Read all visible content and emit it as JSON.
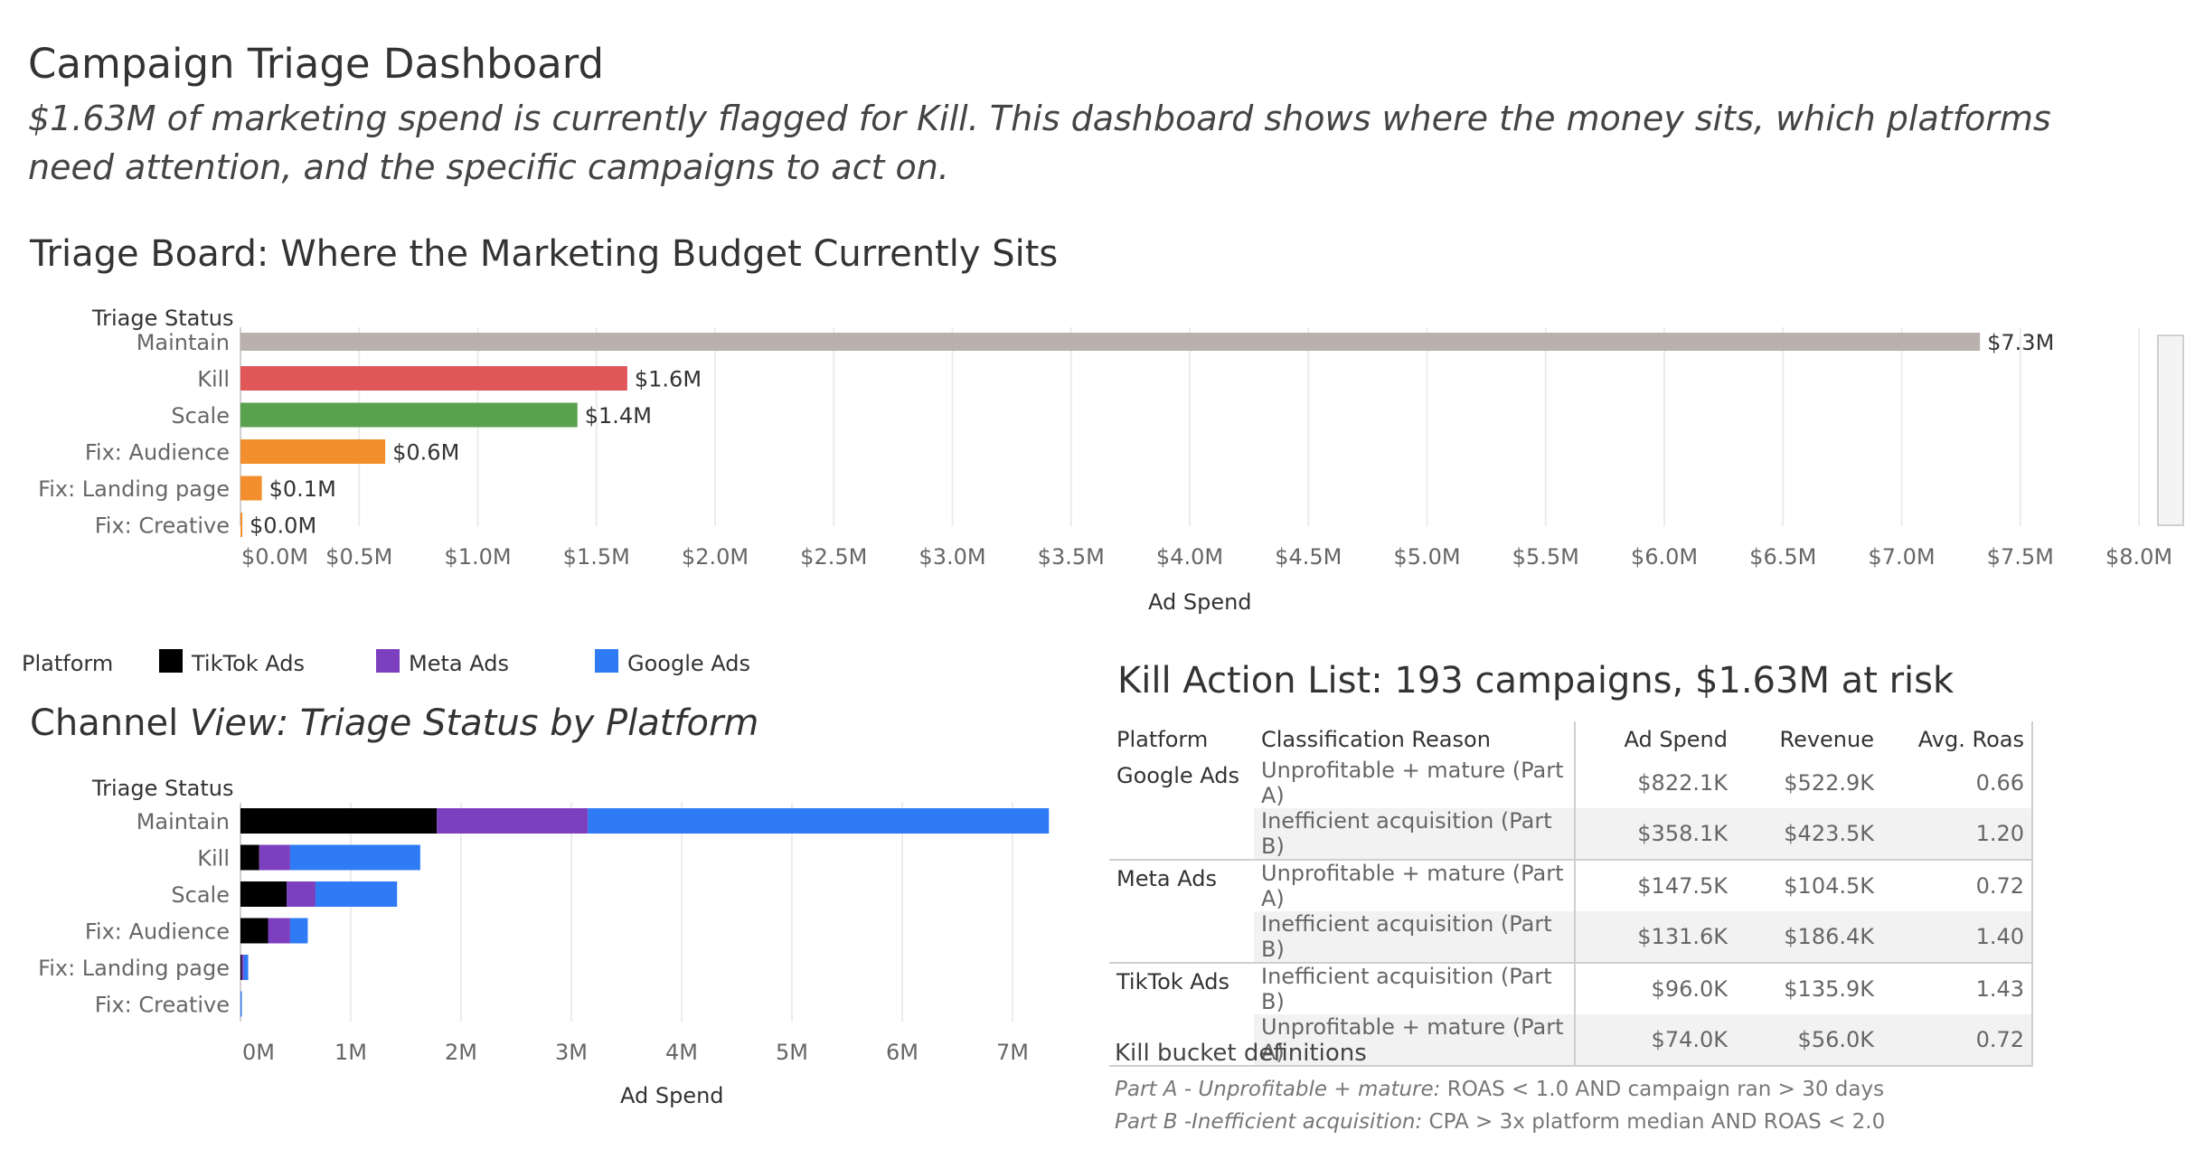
{
  "header": {
    "title": "Campaign Triage Dashboard",
    "subtitle": "$1.63M of marketing spend is currently flagged for Kill. This dashboard shows where the money sits, which platforms need attention, and the specific campaigns to act on."
  },
  "colors": {
    "maintain": "#bab0ac",
    "kill": "#e15759",
    "scale": "#59a14f",
    "fix_audience": "#f28e2b",
    "fix_landing": "#f28e2b",
    "fix_creative": "#f28e2b",
    "tiktok": "#000000",
    "meta": "#7b3fbf",
    "google": "#2f7bf5",
    "gridline": "#ececec"
  },
  "triage_board": {
    "title": "Triage Board: Where the Marketing Budget Currently Sits",
    "header_label": "Triage Status",
    "axis_title": "Ad Spend"
  },
  "channel_view": {
    "title_plain": "Channel",
    "title_italic": "View: Triage Status by Platform",
    "header_label": "Triage Status",
    "axis_title": "Ad Spend",
    "legend_title": "Platform",
    "legend": [
      {
        "name": "TikTok Ads",
        "color": "#000000"
      },
      {
        "name": "Meta Ads",
        "color": "#7b3fbf"
      },
      {
        "name": "Google Ads",
        "color": "#2f7bf5"
      }
    ]
  },
  "chart_data": [
    {
      "type": "bar",
      "orientation": "horizontal",
      "title": "Triage Board: Where the Marketing Budget Currently Sits",
      "xlabel": "Ad Spend",
      "ylabel": "Triage Status",
      "categories": [
        "Maintain",
        "Kill",
        "Scale",
        "Fix: Audience",
        "Fix: Landing page",
        "Fix: Creative"
      ],
      "values": [
        7.33,
        1.63,
        1.42,
        0.61,
        0.09,
        0.005
      ],
      "data_labels": [
        "$7.3M",
        "$1.6M",
        "$1.4M",
        "$0.6M",
        "$0.1M",
        "$0.0M"
      ],
      "bar_colors": [
        "#bab0ac",
        "#e15759",
        "#59a14f",
        "#f28e2b",
        "#f28e2b",
        "#f28e2b"
      ],
      "xlim": [
        0,
        8.0
      ],
      "ticks": [
        0,
        0.5,
        1.0,
        1.5,
        2.0,
        2.5,
        3.0,
        3.5,
        4.0,
        4.5,
        5.0,
        5.5,
        6.0,
        6.5,
        7.0,
        7.5,
        8.0
      ],
      "tick_labels": [
        "$0.0M",
        "$0.5M",
        "$1.0M",
        "$1.5M",
        "$2.0M",
        "$2.5M",
        "$3.0M",
        "$3.5M",
        "$4.0M",
        "$4.5M",
        "$5.0M",
        "$5.5M",
        "$6.0M",
        "$6.5M",
        "$7.0M",
        "$7.5M",
        "$8.0M"
      ],
      "grid": true
    },
    {
      "type": "bar",
      "orientation": "horizontal",
      "stacked": true,
      "title": "Channel View: Triage Status by Platform",
      "xlabel": "Ad Spend",
      "ylabel": "Triage Status",
      "categories": [
        "Maintain",
        "Kill",
        "Scale",
        "Fix: Audience",
        "Fix: Landing page",
        "Fix: Creative"
      ],
      "series": [
        {
          "name": "TikTok Ads",
          "color": "#000000",
          "values": [
            1.78,
            0.17,
            0.42,
            0.25,
            0.01,
            0.0
          ]
        },
        {
          "name": "Meta Ads",
          "color": "#7b3fbf",
          "values": [
            1.37,
            0.28,
            0.26,
            0.2,
            0.02,
            0.0
          ]
        },
        {
          "name": "Google Ads",
          "color": "#2f7bf5",
          "values": [
            4.18,
            1.18,
            0.74,
            0.16,
            0.04,
            0.005
          ]
        }
      ],
      "xlim": [
        0,
        7.6
      ],
      "ticks": [
        0,
        1,
        2,
        3,
        4,
        5,
        6,
        7
      ],
      "tick_labels": [
        "0M",
        "1M",
        "2M",
        "3M",
        "4M",
        "5M",
        "6M",
        "7M"
      ],
      "legend": "top",
      "grid": true
    },
    {
      "type": "table",
      "title": "Kill Action List: 193 campaigns, $1.63M at risk",
      "columns": [
        "Platform",
        "Classification Reason",
        "Ad Spend",
        "Revenue",
        "Avg. Roas"
      ],
      "rows": [
        [
          "Google Ads",
          "Unprofitable + mature (Part A)",
          "$822.1K",
          "$522.9K",
          "0.66"
        ],
        [
          "",
          "Inefficient acquisition (Part B)",
          "$358.1K",
          "$423.5K",
          "1.20"
        ],
        [
          "Meta Ads",
          "Unprofitable + mature (Part A)",
          "$147.5K",
          "$104.5K",
          "0.72"
        ],
        [
          "",
          "Inefficient acquisition (Part B)",
          "$131.6K",
          "$186.4K",
          "1.40"
        ],
        [
          "TikTok Ads",
          "Inefficient acquisition (Part B)",
          "$96.0K",
          "$135.9K",
          "1.43"
        ],
        [
          "",
          "Unprofitable + mature (Part A)",
          "$74.0K",
          "$56.0K",
          "0.72"
        ]
      ]
    }
  ],
  "kill_list": {
    "title": "Kill Action List: 193 campaigns, $1.63M at risk"
  },
  "definitions": {
    "title": "Kill bucket definitions",
    "part_a_label": "Part A",
    "part_a_name": "- Unprofitable + mature:",
    "part_a_rule": "ROAS < 1.0 AND campaign ran > 30 days",
    "part_b_label": "Part B",
    "part_b_name": "-Inefficient acquisition:",
    "part_b_rule": "CPA > 3x platform median AND ROAS < 2.0"
  }
}
